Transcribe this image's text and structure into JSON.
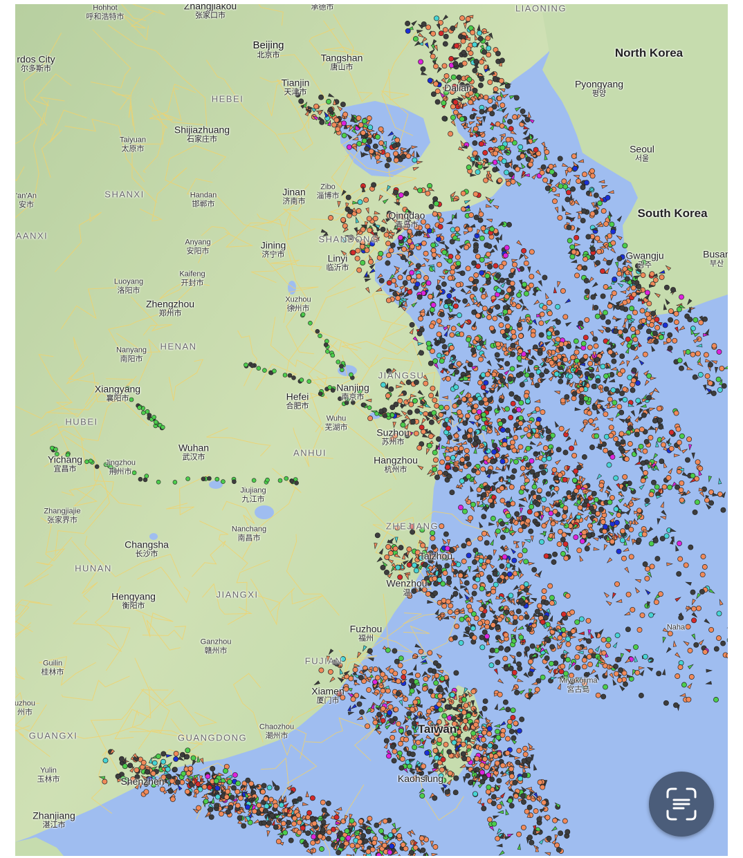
{
  "map": {
    "countries": [
      {
        "name": "North Korea"
      },
      {
        "name": "South Korea"
      }
    ],
    "provinces": [
      {
        "name": "LIAONING"
      },
      {
        "name": "HEBEI"
      },
      {
        "name": "SHANXI"
      },
      {
        "name": "SHANDONG"
      },
      {
        "name": "HENAN"
      },
      {
        "name": "JIANGSU"
      },
      {
        "name": "HUBEI"
      },
      {
        "name": "ANHUI"
      },
      {
        "name": "ZHEJIANG"
      },
      {
        "name": "HUNAN"
      },
      {
        "name": "JIANGXI"
      },
      {
        "name": "FUJIAN"
      },
      {
        "name": "GUANGXI"
      },
      {
        "name": "GUANGDONG"
      },
      {
        "name": "AANXI"
      }
    ],
    "cities": [
      {
        "en": "Hohhot",
        "zh": "呼和浩特市"
      },
      {
        "en": "Zhangjiakou",
        "zh": "张家口市"
      },
      {
        "en": "",
        "zh": "承德市"
      },
      {
        "en": "rdos City",
        "zh": "尔多斯市"
      },
      {
        "en": "Beijing",
        "zh": "北京市"
      },
      {
        "en": "Tangshan",
        "zh": "唐山市"
      },
      {
        "en": "Tianjin",
        "zh": "天津市"
      },
      {
        "en": "Pyongyang",
        "zh": "평양"
      },
      {
        "en": "Taiyuan",
        "zh": "太原市"
      },
      {
        "en": "Shijiazhuang",
        "zh": "石家庄市"
      },
      {
        "en": "Seoul",
        "zh": "서울"
      },
      {
        "en": "Dalian",
        "zh": ""
      },
      {
        "en": "Jinan",
        "zh": "济南市"
      },
      {
        "en": "Zibo",
        "zh": "淄博市"
      },
      {
        "en": "Handan",
        "zh": "邯郸市"
      },
      {
        "en": "'an'An",
        "zh": "安市"
      },
      {
        "en": "Qingdao",
        "zh": "青岛市"
      },
      {
        "en": "Anyang",
        "zh": "安阳市"
      },
      {
        "en": "Jining",
        "zh": "济宁市"
      },
      {
        "en": "Linyi",
        "zh": "临沂市"
      },
      {
        "en": "Gwangju",
        "zh": "광주"
      },
      {
        "en": "Busan",
        "zh": "부산"
      },
      {
        "en": "Luoyang",
        "zh": "洛阳市"
      },
      {
        "en": "Kaifeng",
        "zh": "开封市"
      },
      {
        "en": "Zhengzhou",
        "zh": "郑州市"
      },
      {
        "en": "Xuzhou",
        "zh": "徐州市"
      },
      {
        "en": "Nanyang",
        "zh": "南阳市"
      },
      {
        "en": "Xiangyang",
        "zh": "襄阳市"
      },
      {
        "en": "Nanjing",
        "zh": "南京市"
      },
      {
        "en": "Hefei",
        "zh": "合肥市"
      },
      {
        "en": "Wuhu",
        "zh": "芜湖市"
      },
      {
        "en": "Suzhou",
        "zh": "苏州市"
      },
      {
        "en": "Hangzhou",
        "zh": "杭州市"
      },
      {
        "en": "Yichang",
        "zh": "宜昌市"
      },
      {
        "en": "Jingzhou",
        "zh": "荆州市"
      },
      {
        "en": "Wuhan",
        "zh": "武汉市"
      },
      {
        "en": "Jiujiang",
        "zh": "九江市"
      },
      {
        "en": "Zhangjiajie",
        "zh": "张家界市"
      },
      {
        "en": "Changsha",
        "zh": "长沙市"
      },
      {
        "en": "Nanchang",
        "zh": "南昌市"
      },
      {
        "en": "Taizhou",
        "zh": ""
      },
      {
        "en": "Wenzhou",
        "zh": "温"
      },
      {
        "en": "Hengyang",
        "zh": "衡阳市"
      },
      {
        "en": "Fuzhou",
        "zh": "福州"
      },
      {
        "en": "Ganzhou",
        "zh": "赣州市"
      },
      {
        "en": "Guilin",
        "zh": "桂林市"
      },
      {
        "en": "Miyakojima",
        "zh": "宮古島"
      },
      {
        "en": "Xiamen",
        "zh": "厦门市"
      },
      {
        "en": "uzhou",
        "zh": "州市"
      },
      {
        "en": "Chaozhou",
        "zh": "潮州市"
      },
      {
        "en": "Taiwan",
        "zh": ""
      },
      {
        "en": "Yulin",
        "zh": "玉林市"
      },
      {
        "en": "Shenzhen",
        "zh": ""
      },
      {
        "en": "Kaohsiung",
        "zh": ""
      },
      {
        "en": "Zhanjiang",
        "zh": "湛江市"
      },
      {
        "en": "Naha",
        "zh": ""
      }
    ],
    "vessel_colors": {
      "cargo": "#f08a5a",
      "tanker": "#3d3d3d",
      "passenger": "#4ccd4c",
      "fishing": "#47d4d4",
      "high_speed": "#dd22dd",
      "tug": "#1a2fd6",
      "other": "#d42a2a"
    }
  },
  "overlay": {
    "scan_icon": "scan-text-icon"
  }
}
